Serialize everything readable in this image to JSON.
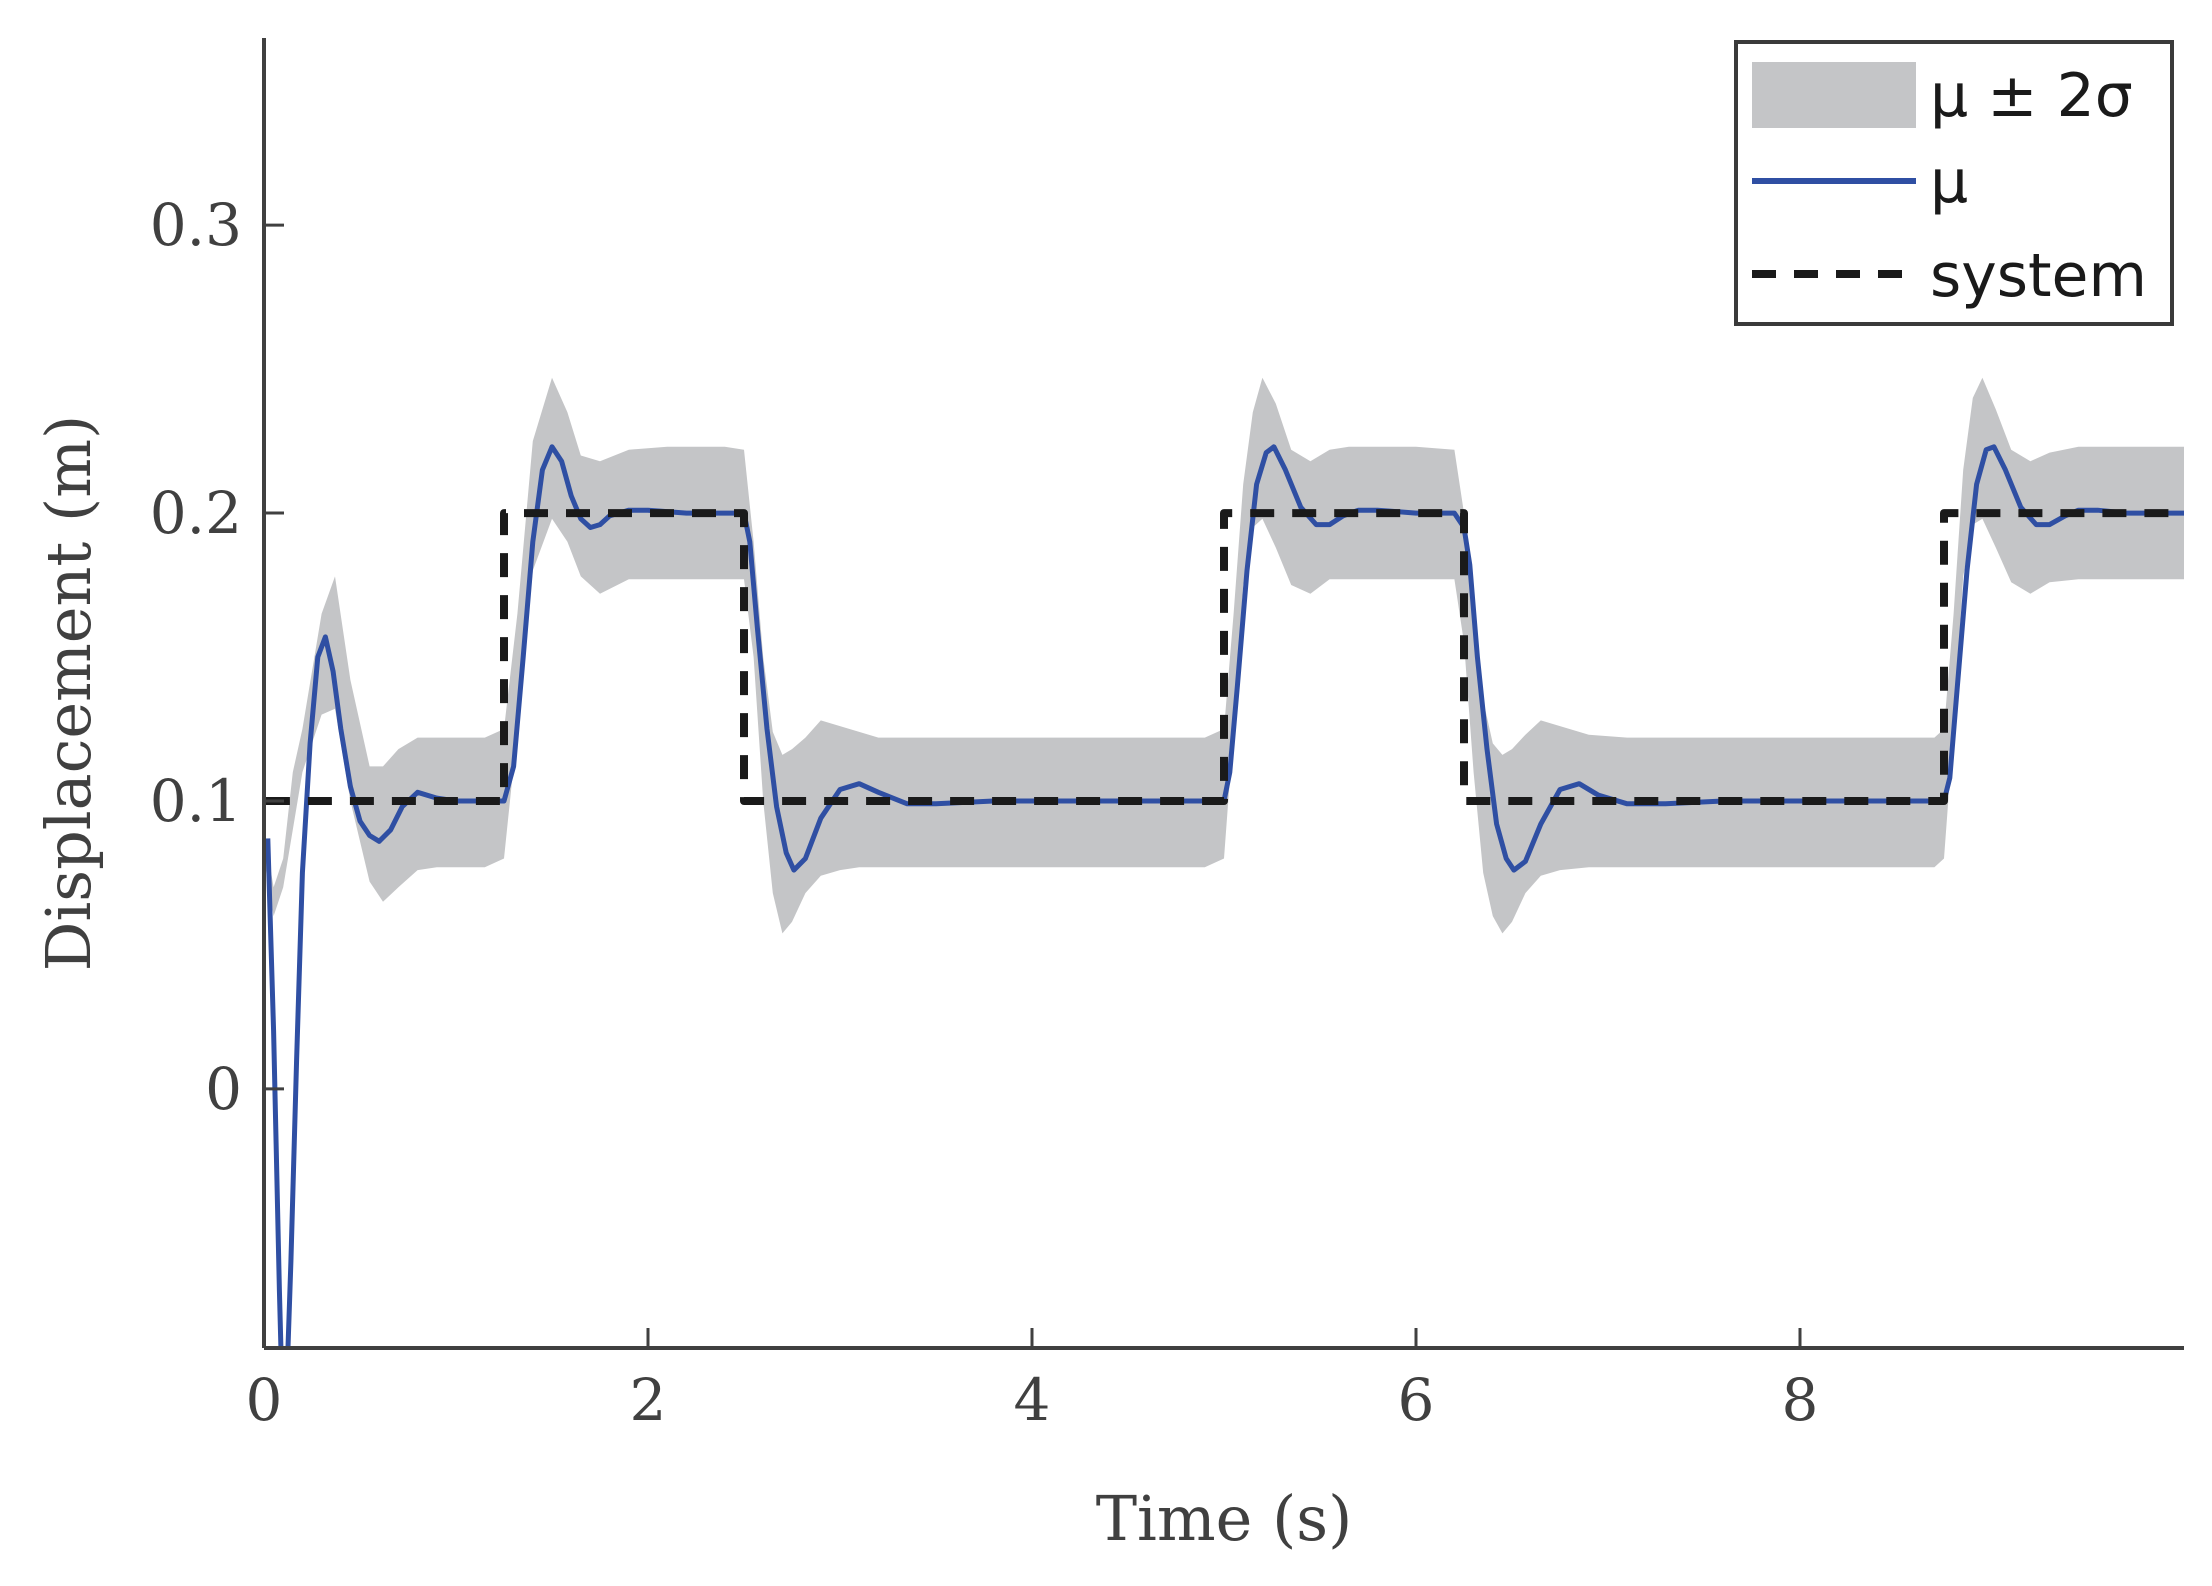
{
  "chart_data": {
    "type": "line",
    "title": "",
    "xlabel": "Time (s)",
    "ylabel": "Displacement (m)",
    "xlim": [
      0,
      10
    ],
    "ylim": [
      -0.09,
      0.365
    ],
    "xticks": [
      0,
      2,
      4,
      6,
      8
    ],
    "xtick_labels": [
      "0",
      "2",
      "4",
      "6",
      "8"
    ],
    "yticks": [
      0,
      0.1,
      0.2,
      0.3
    ],
    "ytick_labels": [
      "0",
      "0.1",
      "0.2",
      "0.3"
    ],
    "grid": false,
    "legend_position": "top-right",
    "legend": [
      {
        "label": "μ ± 2σ",
        "kind": "band"
      },
      {
        "label": "μ",
        "kind": "line"
      },
      {
        "label": "system",
        "kind": "dashed"
      }
    ],
    "series": [
      {
        "name": "μ ± 2σ",
        "kind": "band",
        "color": "#c4c5c7",
        "x": [
          0.0,
          0.05,
          0.1,
          0.15,
          0.2,
          0.25,
          0.3,
          0.37,
          0.45,
          0.55,
          0.62,
          0.7,
          0.8,
          0.9,
          1.0,
          1.15,
          1.25,
          1.32,
          1.4,
          1.5,
          1.58,
          1.65,
          1.75,
          1.9,
          2.1,
          2.4,
          2.5,
          2.55,
          2.6,
          2.65,
          2.7,
          2.75,
          2.82,
          2.9,
          3.0,
          3.1,
          3.2,
          3.4,
          3.7,
          4.2,
          4.9,
          5.0,
          5.05,
          5.1,
          5.15,
          5.2,
          5.27,
          5.35,
          5.45,
          5.55,
          5.65,
          5.8,
          6.0,
          6.2,
          6.25,
          6.3,
          6.35,
          6.4,
          6.45,
          6.5,
          6.57,
          6.65,
          6.75,
          6.9,
          7.1,
          7.5,
          8.0,
          8.7,
          8.75,
          8.8,
          8.85,
          8.9,
          8.95,
          9.02,
          9.1,
          9.2,
          9.3,
          9.45,
          9.6,
          9.8,
          10.0
        ],
        "upper": [
          0.09,
          0.07,
          0.08,
          0.11,
          0.125,
          0.145,
          0.165,
          0.178,
          0.142,
          0.112,
          0.112,
          0.118,
          0.122,
          0.122,
          0.122,
          0.122,
          0.125,
          0.165,
          0.225,
          0.247,
          0.235,
          0.22,
          0.218,
          0.222,
          0.223,
          0.223,
          0.222,
          0.19,
          0.15,
          0.124,
          0.116,
          0.118,
          0.122,
          0.128,
          0.126,
          0.124,
          0.122,
          0.122,
          0.122,
          0.122,
          0.122,
          0.125,
          0.165,
          0.21,
          0.235,
          0.247,
          0.238,
          0.222,
          0.218,
          0.222,
          0.223,
          0.223,
          0.223,
          0.222,
          0.2,
          0.165,
          0.135,
          0.12,
          0.116,
          0.118,
          0.123,
          0.128,
          0.126,
          0.123,
          0.122,
          0.122,
          0.122,
          0.122,
          0.125,
          0.165,
          0.215,
          0.24,
          0.247,
          0.236,
          0.222,
          0.218,
          0.221,
          0.223,
          0.223,
          0.223,
          0.223
        ],
        "lower": [
          0.08,
          0.06,
          0.07,
          0.09,
          0.11,
          0.12,
          0.13,
          0.132,
          0.1,
          0.072,
          0.065,
          0.07,
          0.076,
          0.077,
          0.077,
          0.077,
          0.08,
          0.125,
          0.18,
          0.198,
          0.19,
          0.178,
          0.172,
          0.177,
          0.177,
          0.177,
          0.177,
          0.15,
          0.1,
          0.068,
          0.054,
          0.058,
          0.068,
          0.074,
          0.076,
          0.077,
          0.077,
          0.077,
          0.077,
          0.077,
          0.077,
          0.08,
          0.125,
          0.175,
          0.195,
          0.198,
          0.188,
          0.175,
          0.172,
          0.177,
          0.177,
          0.177,
          0.177,
          0.177,
          0.155,
          0.11,
          0.075,
          0.06,
          0.054,
          0.058,
          0.068,
          0.074,
          0.076,
          0.077,
          0.077,
          0.077,
          0.077,
          0.077,
          0.08,
          0.125,
          0.178,
          0.196,
          0.198,
          0.188,
          0.176,
          0.172,
          0.176,
          0.177,
          0.177,
          0.177,
          0.177
        ]
      },
      {
        "name": "μ",
        "kind": "line",
        "color": "#2f4fa3",
        "x": [
          0.02,
          0.05,
          0.08,
          0.1,
          0.12,
          0.14,
          0.17,
          0.2,
          0.24,
          0.28,
          0.32,
          0.36,
          0.4,
          0.45,
          0.5,
          0.55,
          0.6,
          0.66,
          0.72,
          0.8,
          0.9,
          1.0,
          1.1,
          1.2,
          1.25,
          1.3,
          1.35,
          1.4,
          1.45,
          1.5,
          1.55,
          1.6,
          1.65,
          1.7,
          1.75,
          1.8,
          1.9,
          2.0,
          2.2,
          2.4,
          2.5,
          2.53,
          2.57,
          2.62,
          2.67,
          2.72,
          2.76,
          2.82,
          2.9,
          3.0,
          3.1,
          3.2,
          3.35,
          3.5,
          3.8,
          4.2,
          4.6,
          5.0,
          5.03,
          5.07,
          5.12,
          5.17,
          5.22,
          5.26,
          5.32,
          5.4,
          5.48,
          5.55,
          5.62,
          5.7,
          5.8,
          6.0,
          6.2,
          6.25,
          6.28,
          6.32,
          6.37,
          6.42,
          6.47,
          6.51,
          6.57,
          6.65,
          6.75,
          6.85,
          6.95,
          7.1,
          7.3,
          7.6,
          8.0,
          8.4,
          8.75,
          8.78,
          8.82,
          8.87,
          8.92,
          8.97,
          9.01,
          9.07,
          9.15,
          9.23,
          9.3,
          9.38,
          9.45,
          9.55,
          9.7,
          9.85,
          10.0
        ],
        "y": [
          0.087,
          0.02,
          -0.07,
          -0.12,
          -0.1,
          -0.06,
          0.01,
          0.075,
          0.12,
          0.15,
          0.157,
          0.145,
          0.125,
          0.105,
          0.093,
          0.088,
          0.086,
          0.09,
          0.098,
          0.103,
          0.101,
          0.1,
          0.1,
          0.1,
          0.1,
          0.112,
          0.15,
          0.19,
          0.215,
          0.223,
          0.218,
          0.206,
          0.198,
          0.195,
          0.196,
          0.199,
          0.201,
          0.201,
          0.2,
          0.2,
          0.2,
          0.19,
          0.16,
          0.125,
          0.098,
          0.082,
          0.076,
          0.08,
          0.094,
          0.104,
          0.106,
          0.103,
          0.099,
          0.099,
          0.1,
          0.1,
          0.1,
          0.1,
          0.11,
          0.14,
          0.18,
          0.21,
          0.221,
          0.223,
          0.215,
          0.202,
          0.196,
          0.196,
          0.199,
          0.201,
          0.201,
          0.2,
          0.2,
          0.195,
          0.182,
          0.15,
          0.118,
          0.092,
          0.08,
          0.076,
          0.079,
          0.092,
          0.104,
          0.106,
          0.102,
          0.099,
          0.099,
          0.1,
          0.1,
          0.1,
          0.1,
          0.108,
          0.14,
          0.18,
          0.21,
          0.222,
          0.223,
          0.215,
          0.202,
          0.196,
          0.196,
          0.199,
          0.201,
          0.201,
          0.2,
          0.2,
          0.2
        ]
      },
      {
        "name": "system",
        "kind": "dashed",
        "color": "#1a1a1a",
        "x": [
          0.01,
          1.25,
          1.25,
          2.5,
          2.5,
          5.0,
          5.0,
          6.25,
          6.25,
          8.75,
          8.75,
          10.0
        ],
        "y": [
          0.1,
          0.1,
          0.2,
          0.2,
          0.1,
          0.1,
          0.2,
          0.2,
          0.1,
          0.1,
          0.2,
          0.2
        ]
      }
    ]
  }
}
